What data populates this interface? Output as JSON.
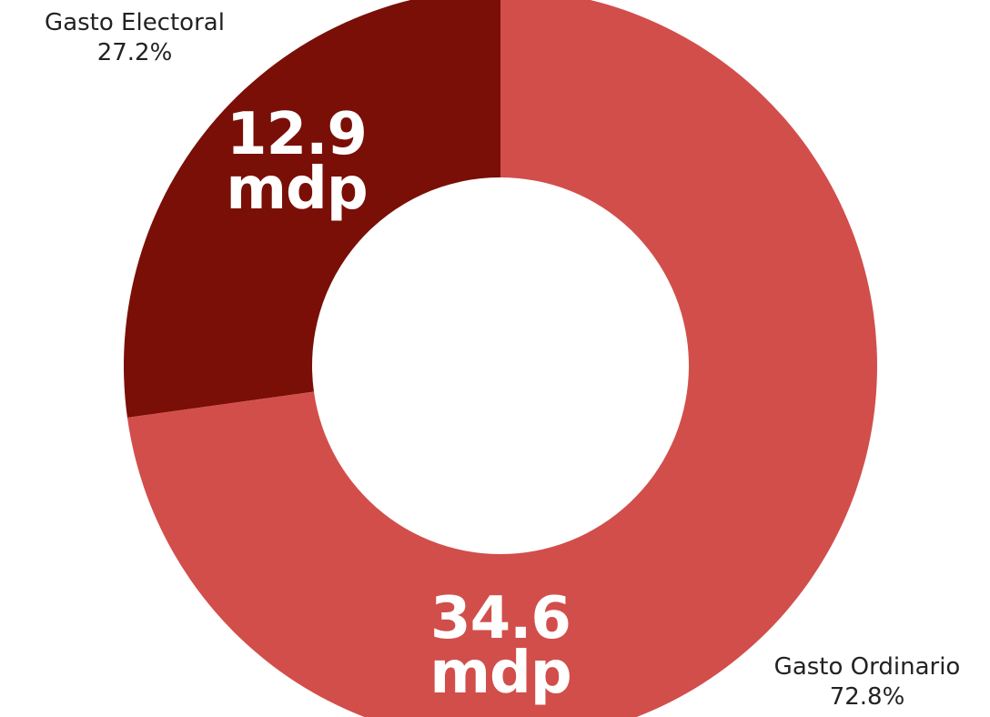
{
  "chart_data": {
    "type": "pie",
    "hole": 0.5,
    "slices": [
      {
        "name": "Gasto Electoral",
        "percent_label": "27.2%",
        "percent": 27.2,
        "value": "12.9",
        "unit": "mdp",
        "color": "#7a0f07"
      },
      {
        "name": "Gasto Ordinario",
        "percent_label": "72.8%",
        "percent": 72.8,
        "value": "34.6",
        "unit": "mdp",
        "color": "#d24e4b"
      }
    ]
  }
}
